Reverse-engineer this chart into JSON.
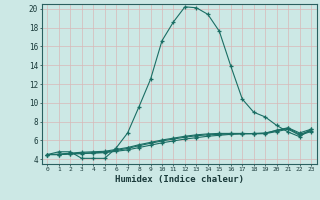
{
  "title": "",
  "xlabel": "Humidex (Indice chaleur)",
  "bg_color": "#cce8e5",
  "line_color": "#1a6e64",
  "grid_color": "#d8b8b8",
  "xlim": [
    -0.5,
    23.5
  ],
  "ylim": [
    3.5,
    20.5
  ],
  "yticks": [
    4,
    6,
    8,
    10,
    12,
    14,
    16,
    18,
    20
  ],
  "xticks": [
    0,
    1,
    2,
    3,
    4,
    5,
    6,
    7,
    8,
    9,
    10,
    11,
    12,
    13,
    14,
    15,
    16,
    17,
    18,
    19,
    20,
    21,
    22,
    23
  ],
  "series": [
    {
      "x": [
        0,
        1,
        2,
        3,
        4,
        5,
        6,
        7,
        8,
        9,
        10,
        11,
        12,
        13,
        14,
        15,
        16,
        17,
        18,
        19,
        20,
        21,
        22,
        23
      ],
      "y": [
        4.5,
        4.8,
        4.8,
        4.1,
        4.1,
        4.1,
        5.2,
        6.8,
        9.6,
        12.5,
        16.6,
        18.6,
        20.2,
        20.1,
        19.4,
        17.6,
        13.9,
        10.4,
        9.0,
        8.5,
        7.6,
        6.9,
        6.4,
        7.2
      ]
    },
    {
      "x": [
        0,
        1,
        2,
        3,
        4,
        5,
        6,
        7,
        8,
        9,
        10,
        11,
        12,
        13,
        14,
        15,
        16,
        17,
        18,
        19,
        20,
        21,
        22,
        23
      ],
      "y": [
        4.5,
        4.5,
        4.55,
        4.6,
        4.65,
        4.7,
        4.85,
        5.0,
        5.25,
        5.5,
        5.75,
        5.95,
        6.15,
        6.3,
        6.45,
        6.55,
        6.65,
        6.7,
        6.75,
        6.8,
        7.05,
        7.3,
        6.65,
        7.05
      ]
    },
    {
      "x": [
        0,
        1,
        2,
        3,
        4,
        5,
        6,
        7,
        8,
        9,
        10,
        11,
        12,
        13,
        14,
        15,
        16,
        17,
        18,
        19,
        20,
        21,
        22,
        23
      ],
      "y": [
        4.5,
        4.5,
        4.6,
        4.65,
        4.7,
        4.75,
        4.95,
        5.15,
        5.45,
        5.7,
        5.95,
        6.15,
        6.35,
        6.5,
        6.6,
        6.65,
        6.7,
        6.72,
        6.72,
        6.72,
        6.95,
        7.2,
        6.55,
        6.95
      ]
    },
    {
      "x": [
        0,
        1,
        2,
        3,
        4,
        5,
        6,
        7,
        8,
        9,
        10,
        11,
        12,
        13,
        14,
        15,
        16,
        17,
        18,
        19,
        20,
        21,
        22,
        23
      ],
      "y": [
        4.5,
        4.55,
        4.65,
        4.75,
        4.8,
        4.85,
        5.05,
        5.25,
        5.55,
        5.8,
        6.05,
        6.25,
        6.45,
        6.6,
        6.7,
        6.75,
        6.75,
        6.75,
        6.72,
        6.75,
        7.1,
        7.35,
        6.8,
        7.2
      ]
    }
  ]
}
